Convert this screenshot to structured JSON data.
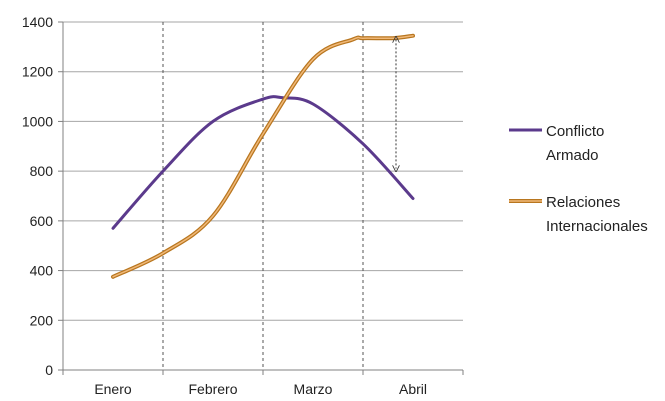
{
  "chart_data": {
    "type": "line",
    "categories": [
      "Enero",
      "Febrero",
      "Marzo",
      "Abril"
    ],
    "ylim": [
      0,
      1400
    ],
    "yticks": [
      0,
      200,
      400,
      600,
      800,
      1000,
      1200,
      1400
    ],
    "grid": true,
    "legend_position": "right",
    "series": [
      {
        "name_lines": [
          "Conflicto",
          "Armado"
        ],
        "color": "#5b3a8c",
        "x": [
          0.5,
          1.0,
          1.5,
          2.0,
          2.2,
          2.5,
          3.0,
          3.5
        ],
        "values": [
          570,
          800,
          1000,
          1090,
          1095,
          1070,
          910,
          690
        ]
      },
      {
        "name_lines": [
          "Relaciones",
          "Internacionales"
        ],
        "color": "#d4903a",
        "x": [
          0.5,
          1.0,
          1.5,
          2.0,
          2.5,
          2.9,
          3.0,
          3.3,
          3.5
        ],
        "values": [
          375,
          470,
          620,
          950,
          1250,
          1330,
          1335,
          1335,
          1345
        ]
      }
    ],
    "annotation": {
      "type": "double-arrow",
      "x": 3.33,
      "from": 1330,
      "to": 810
    }
  }
}
